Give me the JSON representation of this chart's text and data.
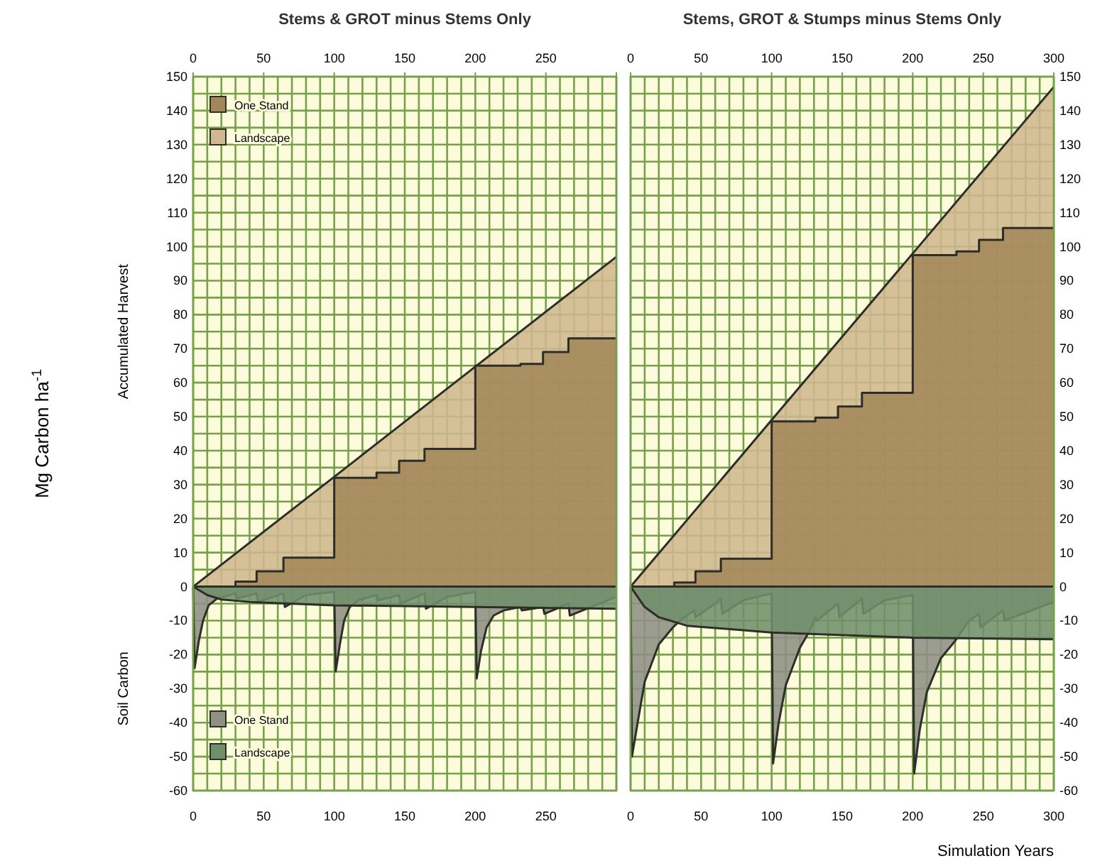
{
  "chart_data": [
    {
      "type": "area",
      "title": "Stems & GROT minus Stems Only",
      "ylabel": "Mg Carbon ha$^{-1}$",
      "annotations": [
        "Accumulated Harvest",
        "Soil Carbon"
      ],
      "legend": "left",
      "grid": true,
      "xlim": [
        0,
        300
      ],
      "ylim": [
        -60,
        150
      ],
      "xticks": [
        0,
        {
          "value": 10,
          "label": null
        },
        {
          "value": 20,
          "label": null
        },
        {
          "value": 30,
          "label": null
        },
        {
          "value": 40,
          "label": null
        },
        50,
        {
          "value": 60,
          "label": null
        },
        {
          "value": 70,
          "label": null
        },
        {
          "value": 80,
          "label": null
        },
        {
          "value": 90,
          "label": null
        },
        100,
        {
          "value": 110,
          "label": null
        },
        {
          "value": 120,
          "label": null
        },
        {
          "value": 130,
          "label": null
        },
        {
          "value": 140,
          "label": null
        },
        150,
        {
          "value": 160,
          "label": null
        },
        {
          "value": 170,
          "label": null
        },
        {
          "value": 180,
          "label": null
        },
        {
          "value": 190,
          "label": null
        },
        200,
        {
          "value": 210,
          "label": null
        },
        {
          "value": 220,
          "label": null
        },
        {
          "value": 230,
          "label": null
        },
        {
          "value": 240,
          "label": null
        },
        250,
        {
          "value": 260,
          "label": null
        },
        {
          "value": 270,
          "label": null
        },
        {
          "value": 280,
          "label": null
        },
        {
          "value": 290,
          "label": null
        },
        {
          "value": 300,
          "label": null
        }
      ],
      "x2lim": [
        0,
        300
      ],
      "x2ticks": [
        0,
        50,
        100,
        150,
        200,
        250,
        {
          "value": 300,
          "label": null
        }
      ],
      "yticks": [
        -60,
        {
          "value": -55,
          "label": null
        },
        -50,
        {
          "value": -45,
          "label": null
        },
        -40,
        {
          "value": -35,
          "label": null
        },
        -30,
        {
          "value": -25,
          "label": null
        },
        -20,
        {
          "value": -15,
          "label": null
        },
        -10,
        {
          "value": -5,
          "label": null
        },
        0,
        {
          "value": 5,
          "label": null
        },
        10,
        {
          "value": 15,
          "label": null
        },
        20,
        {
          "value": 25,
          "label": null
        },
        30,
        {
          "value": 35,
          "label": null
        },
        40,
        {
          "value": 45,
          "label": null
        },
        50,
        {
          "value": 55,
          "label": null
        },
        60,
        {
          "value": 65,
          "label": null
        },
        70,
        {
          "value": 75,
          "label": null
        },
        80,
        {
          "value": 85,
          "label": null
        },
        90,
        {
          "value": 95,
          "label": null
        },
        100,
        {
          "value": 105,
          "label": null
        },
        110,
        {
          "value": 115,
          "label": null
        },
        120,
        {
          "value": 125,
          "label": null
        },
        130,
        {
          "value": 135,
          "label": null
        },
        140,
        {
          "value": 145,
          "label": null
        },
        150
      ],
      "series": [
        {
          "name": "One Stand",
          "color": "#a3875a",
          "x": [
            0,
            30,
            30,
            45,
            45,
            64,
            64,
            100,
            100,
            130,
            130,
            146,
            146,
            164,
            164,
            200,
            200,
            232,
            232,
            248,
            248,
            266,
            266,
            300
          ],
          "values": [
            0,
            0,
            1.5,
            1.5,
            4.5,
            4.5,
            8.5,
            8.5,
            32,
            32,
            33.5,
            33.5,
            37,
            37,
            40.5,
            40.5,
            65,
            65,
            65.5,
            65.5,
            69,
            69,
            73,
            73
          ]
        },
        {
          "name": "Landscape",
          "color": "#cfb78e",
          "x": [
            0,
            100,
            200,
            300
          ],
          "values": [
            0,
            32.3,
            64.7,
            97
          ]
        },
        {
          "name": "One Stand",
          "color": "#8e9084",
          "x": [
            0,
            1,
            4,
            7,
            11,
            17,
            30,
            31,
            45,
            46,
            64,
            65,
            80,
            100,
            101,
            104,
            107,
            111,
            117,
            130,
            131,
            146,
            147,
            164,
            165,
            180,
            200,
            201,
            204,
            208,
            213,
            220,
            232,
            233,
            248,
            249,
            266,
            267,
            300
          ],
          "values": [
            0,
            -24,
            -16,
            -10,
            -5.5,
            -3.5,
            -2,
            -3.5,
            -2,
            -4.5,
            -2,
            -6,
            -2.5,
            -1.5,
            -25,
            -17,
            -10,
            -6,
            -4,
            -2.5,
            -4,
            -2.5,
            -5,
            -2,
            -6.5,
            -3,
            -1.5,
            -27,
            -19,
            -12,
            -8.5,
            -7,
            -6,
            -7,
            -6,
            -8,
            -5,
            -8.5,
            -3
          ]
        },
        {
          "name": "Landscape",
          "color": "#6f906b",
          "x": [
            0,
            10,
            20,
            40,
            100,
            200,
            300
          ],
          "values": [
            0,
            -2.5,
            -3.8,
            -4.5,
            -5.5,
            -6,
            -6.5
          ]
        }
      ]
    },
    {
      "type": "area",
      "title": "Stems, GROT & Stumps minus Stems Only",
      "xlabel": "Simulation Years",
      "grid": true,
      "xlim": [
        0,
        300
      ],
      "ylim": [
        -60,
        150
      ],
      "xticks": [
        0,
        {
          "value": 10,
          "label": null
        },
        {
          "value": 20,
          "label": null
        },
        {
          "value": 30,
          "label": null
        },
        {
          "value": 40,
          "label": null
        },
        50,
        {
          "value": 60,
          "label": null
        },
        {
          "value": 70,
          "label": null
        },
        {
          "value": 80,
          "label": null
        },
        {
          "value": 90,
          "label": null
        },
        100,
        {
          "value": 110,
          "label": null
        },
        {
          "value": 120,
          "label": null
        },
        {
          "value": 130,
          "label": null
        },
        {
          "value": 140,
          "label": null
        },
        150,
        {
          "value": 160,
          "label": null
        },
        {
          "value": 170,
          "label": null
        },
        {
          "value": 180,
          "label": null
        },
        {
          "value": 190,
          "label": null
        },
        200,
        {
          "value": 210,
          "label": null
        },
        {
          "value": 220,
          "label": null
        },
        {
          "value": 230,
          "label": null
        },
        {
          "value": 240,
          "label": null
        },
        250,
        {
          "value": 260,
          "label": null
        },
        {
          "value": 270,
          "label": null
        },
        {
          "value": 280,
          "label": null
        },
        {
          "value": 290,
          "label": null
        },
        300
      ],
      "x2lim": [
        0,
        300
      ],
      "x2ticks": [
        0,
        50,
        100,
        150,
        200,
        250,
        300
      ],
      "yticks": [
        -60,
        {
          "value": -55,
          "label": null
        },
        -50,
        {
          "value": -45,
          "label": null
        },
        -40,
        {
          "value": -35,
          "label": null
        },
        -30,
        {
          "value": -25,
          "label": null
        },
        -20,
        {
          "value": -15,
          "label": null
        },
        -10,
        {
          "value": -5,
          "label": null
        },
        0,
        {
          "value": 5,
          "label": null
        },
        10,
        {
          "value": 15,
          "label": null
        },
        20,
        {
          "value": 25,
          "label": null
        },
        30,
        {
          "value": 35,
          "label": null
        },
        40,
        {
          "value": 45,
          "label": null
        },
        50,
        {
          "value": 55,
          "label": null
        },
        60,
        {
          "value": 65,
          "label": null
        },
        70,
        {
          "value": 75,
          "label": null
        },
        80,
        {
          "value": 85,
          "label": null
        },
        90,
        {
          "value": 95,
          "label": null
        },
        100,
        {
          "value": 105,
          "label": null
        },
        110,
        {
          "value": 115,
          "label": null
        },
        120,
        {
          "value": 125,
          "label": null
        },
        130,
        {
          "value": 135,
          "label": null
        },
        140,
        {
          "value": 145,
          "label": null
        },
        150
      ],
      "series": [
        {
          "color": "#a3875a",
          "x": [
            0,
            31,
            31,
            46,
            46,
            64,
            64,
            100,
            100,
            131,
            131,
            147,
            147,
            164,
            164,
            200,
            200,
            231,
            231,
            247,
            247,
            264,
            264,
            300
          ],
          "values": [
            0,
            0,
            1.2,
            1.2,
            4.5,
            4.5,
            8.2,
            8.2,
            48.6,
            48.6,
            49.7,
            49.7,
            53,
            53,
            57,
            57,
            97.5,
            97.5,
            98.6,
            98.6,
            102,
            102,
            105.5,
            105.5
          ]
        },
        {
          "color": "#cfb78e",
          "x": [
            0,
            100,
            200,
            300
          ],
          "values": [
            0,
            49,
            98,
            147
          ]
        },
        {
          "color": "#8e9084",
          "x": [
            0,
            1,
            5,
            10,
            20,
            30,
            35,
            45,
            46,
            60,
            64,
            65,
            80,
            100,
            101,
            105,
            110,
            120,
            127,
            131,
            132,
            147,
            148,
            164,
            165,
            180,
            200,
            201,
            205,
            210,
            220,
            230,
            240,
            247,
            248,
            264,
            265,
            300
          ],
          "values": [
            0,
            -50,
            -40,
            -28,
            -17,
            -12,
            -10,
            -7,
            -9,
            -5,
            -3.5,
            -8,
            -4,
            -2,
            -52,
            -40,
            -29,
            -18,
            -13,
            -9,
            -10,
            -5,
            -9,
            -3.5,
            -8,
            -4,
            -2.5,
            -55,
            -42,
            -31,
            -21,
            -16,
            -10,
            -8,
            -12,
            -7,
            -10,
            -4.5
          ]
        },
        {
          "color": "#6f906b",
          "x": [
            0,
            10,
            20,
            40,
            100,
            200,
            300
          ],
          "values": [
            0,
            -6,
            -9,
            -11.5,
            -13.5,
            -15,
            -15.5
          ]
        }
      ]
    }
  ]
}
